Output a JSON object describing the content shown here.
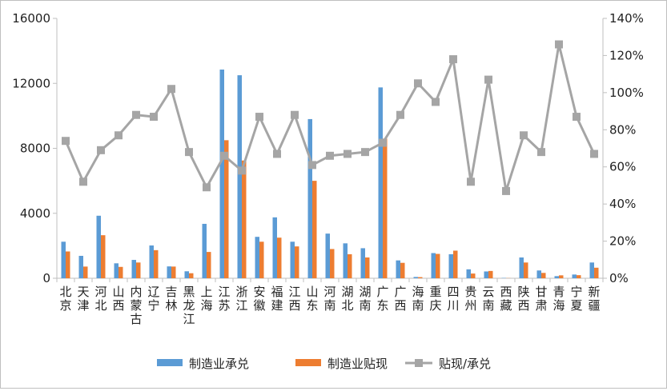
{
  "chart_data": {
    "type": "bar",
    "categories": [
      "北京",
      "天津",
      "河北",
      "山西",
      "内蒙古",
      "辽宁",
      "吉林",
      "黑龙江",
      "上海",
      "江苏",
      "浙江",
      "安徽",
      "福建",
      "江西",
      "山东",
      "河南",
      "湖北",
      "湖南",
      "广东",
      "广西",
      "海南",
      "重庆",
      "四川",
      "贵州",
      "云南",
      "西藏",
      "陕西",
      "甘肃",
      "青海",
      "宁夏",
      "新疆"
    ],
    "series": [
      {
        "name": "制造业承兑",
        "axis": "left",
        "chart_type": "bar",
        "color": "#5b9bd5",
        "values": [
          2250,
          1380,
          3850,
          920,
          1130,
          2020,
          730,
          430,
          3350,
          12850,
          12500,
          2550,
          3750,
          2250,
          9800,
          2750,
          2150,
          1850,
          11750,
          1100,
          80,
          1550,
          1480,
          550,
          420,
          20,
          1280,
          480,
          130,
          230,
          970
        ]
      },
      {
        "name": "制造业贴现",
        "axis": "left",
        "chart_type": "bar",
        "color": "#ed7d31",
        "values": [
          1650,
          720,
          2650,
          700,
          970,
          1730,
          720,
          310,
          1620,
          8500,
          7250,
          2250,
          2500,
          1960,
          6000,
          1800,
          1480,
          1280,
          8600,
          950,
          70,
          1500,
          1700,
          290,
          450,
          10,
          970,
          330,
          180,
          190,
          650
        ]
      },
      {
        "name": "贴现/承兑",
        "axis": "right",
        "chart_type": "line",
        "color": "#a5a5a5",
        "values": [
          74,
          52,
          69,
          77,
          88,
          87,
          102,
          68,
          49,
          66,
          58,
          87,
          67,
          88,
          61,
          66,
          67,
          68,
          73,
          88,
          105,
          95,
          118,
          52,
          107,
          47,
          77,
          68,
          126,
          87,
          67
        ]
      }
    ],
    "y_left": {
      "min": 0,
      "max": 16000,
      "ticks": [
        "0",
        "4000",
        "8000",
        "12000",
        "16000"
      ]
    },
    "y_right": {
      "min": 0,
      "max": 140,
      "ticks": [
        "0%",
        "20%",
        "40%",
        "60%",
        "80%",
        "100%",
        "120%",
        "140%"
      ]
    },
    "legend_position": "bottom",
    "grid": false
  }
}
